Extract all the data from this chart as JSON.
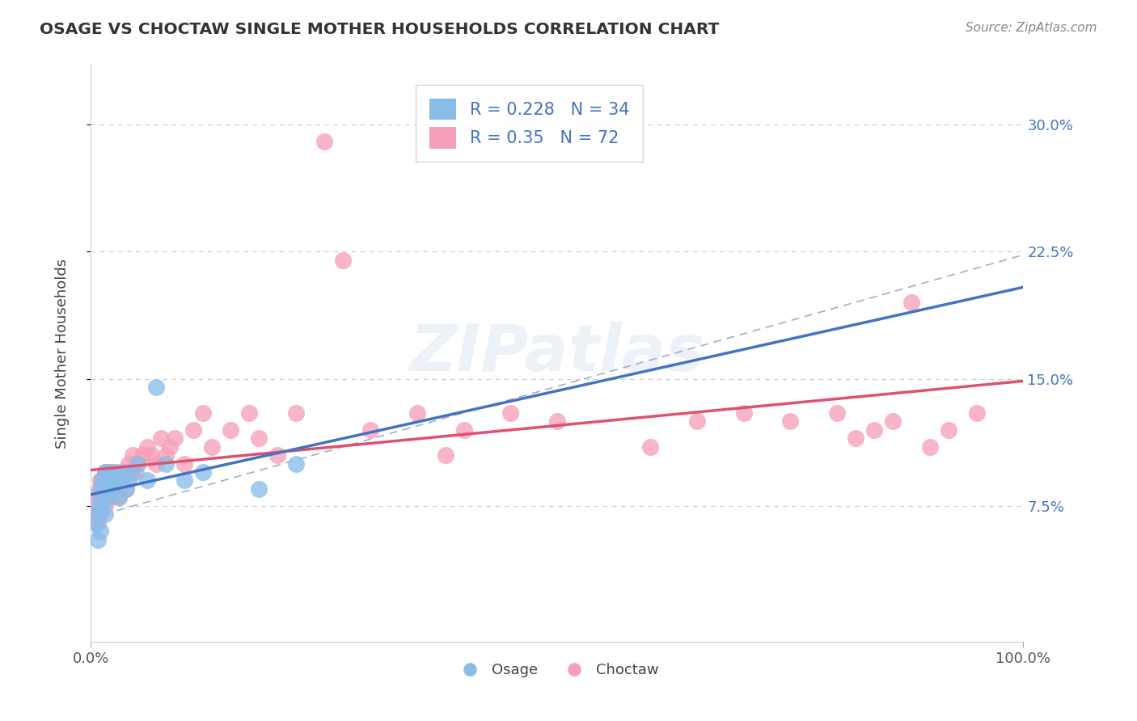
{
  "title": "OSAGE VS CHOCTAW SINGLE MOTHER HOUSEHOLDS CORRELATION CHART",
  "source": "Source: ZipAtlas.com",
  "ylabel": "Single Mother Households",
  "xlim": [
    0.0,
    1.0
  ],
  "ylim": [
    -0.005,
    0.335
  ],
  "yticks": [
    0.075,
    0.15,
    0.225,
    0.3
  ],
  "ytick_labels": [
    "7.5%",
    "15.0%",
    "22.5%",
    "30.0%"
  ],
  "xtick_labels": [
    "0.0%",
    "100.0%"
  ],
  "osage_color": "#89bde8",
  "choctaw_color": "#f5a0b8",
  "osage_line_color": "#4472c4",
  "choctaw_line_color": "#e05070",
  "dashed_line_color": "#aaaacc",
  "osage_R": 0.228,
  "osage_N": 34,
  "choctaw_R": 0.35,
  "choctaw_N": 72,
  "background_color": "#ffffff",
  "watermark": "ZIPatlas",
  "legend_text_color": "#4472c4",
  "osage_x": [
    0.005,
    0.007,
    0.008,
    0.009,
    0.01,
    0.01,
    0.01,
    0.012,
    0.012,
    0.015,
    0.015,
    0.015,
    0.017,
    0.018,
    0.018,
    0.02,
    0.02,
    0.022,
    0.025,
    0.025,
    0.03,
    0.032,
    0.035,
    0.038,
    0.04,
    0.045,
    0.05,
    0.06,
    0.07,
    0.08,
    0.1,
    0.12,
    0.18,
    0.22
  ],
  "osage_y": [
    0.065,
    0.055,
    0.07,
    0.075,
    0.06,
    0.08,
    0.085,
    0.075,
    0.09,
    0.07,
    0.085,
    0.095,
    0.08,
    0.085,
    0.095,
    0.085,
    0.09,
    0.085,
    0.09,
    0.095,
    0.08,
    0.09,
    0.095,
    0.085,
    0.09,
    0.095,
    0.1,
    0.09,
    0.145,
    0.1,
    0.09,
    0.095,
    0.085,
    0.1
  ],
  "choctaw_x": [
    0.005,
    0.006,
    0.007,
    0.008,
    0.009,
    0.01,
    0.01,
    0.012,
    0.012,
    0.013,
    0.015,
    0.015,
    0.015,
    0.017,
    0.018,
    0.019,
    0.02,
    0.02,
    0.02,
    0.022,
    0.022,
    0.025,
    0.025,
    0.028,
    0.03,
    0.03,
    0.032,
    0.033,
    0.035,
    0.038,
    0.04,
    0.042,
    0.045,
    0.048,
    0.05,
    0.055,
    0.06,
    0.065,
    0.07,
    0.075,
    0.08,
    0.085,
    0.09,
    0.1,
    0.11,
    0.12,
    0.13,
    0.15,
    0.17,
    0.18,
    0.2,
    0.22,
    0.25,
    0.27,
    0.3,
    0.35,
    0.38,
    0.4,
    0.45,
    0.5,
    0.6,
    0.65,
    0.7,
    0.75,
    0.8,
    0.82,
    0.84,
    0.86,
    0.88,
    0.9,
    0.92,
    0.95
  ],
  "choctaw_y": [
    0.07,
    0.075,
    0.065,
    0.08,
    0.085,
    0.07,
    0.09,
    0.08,
    0.09,
    0.085,
    0.075,
    0.085,
    0.095,
    0.08,
    0.085,
    0.09,
    0.085,
    0.09,
    0.095,
    0.08,
    0.09,
    0.085,
    0.09,
    0.095,
    0.08,
    0.09,
    0.085,
    0.09,
    0.095,
    0.085,
    0.1,
    0.095,
    0.105,
    0.095,
    0.1,
    0.105,
    0.11,
    0.105,
    0.1,
    0.115,
    0.105,
    0.11,
    0.115,
    0.1,
    0.12,
    0.13,
    0.11,
    0.12,
    0.13,
    0.115,
    0.105,
    0.13,
    0.29,
    0.22,
    0.12,
    0.13,
    0.105,
    0.12,
    0.13,
    0.125,
    0.11,
    0.125,
    0.13,
    0.125,
    0.13,
    0.115,
    0.12,
    0.125,
    0.195,
    0.11,
    0.12,
    0.13
  ]
}
